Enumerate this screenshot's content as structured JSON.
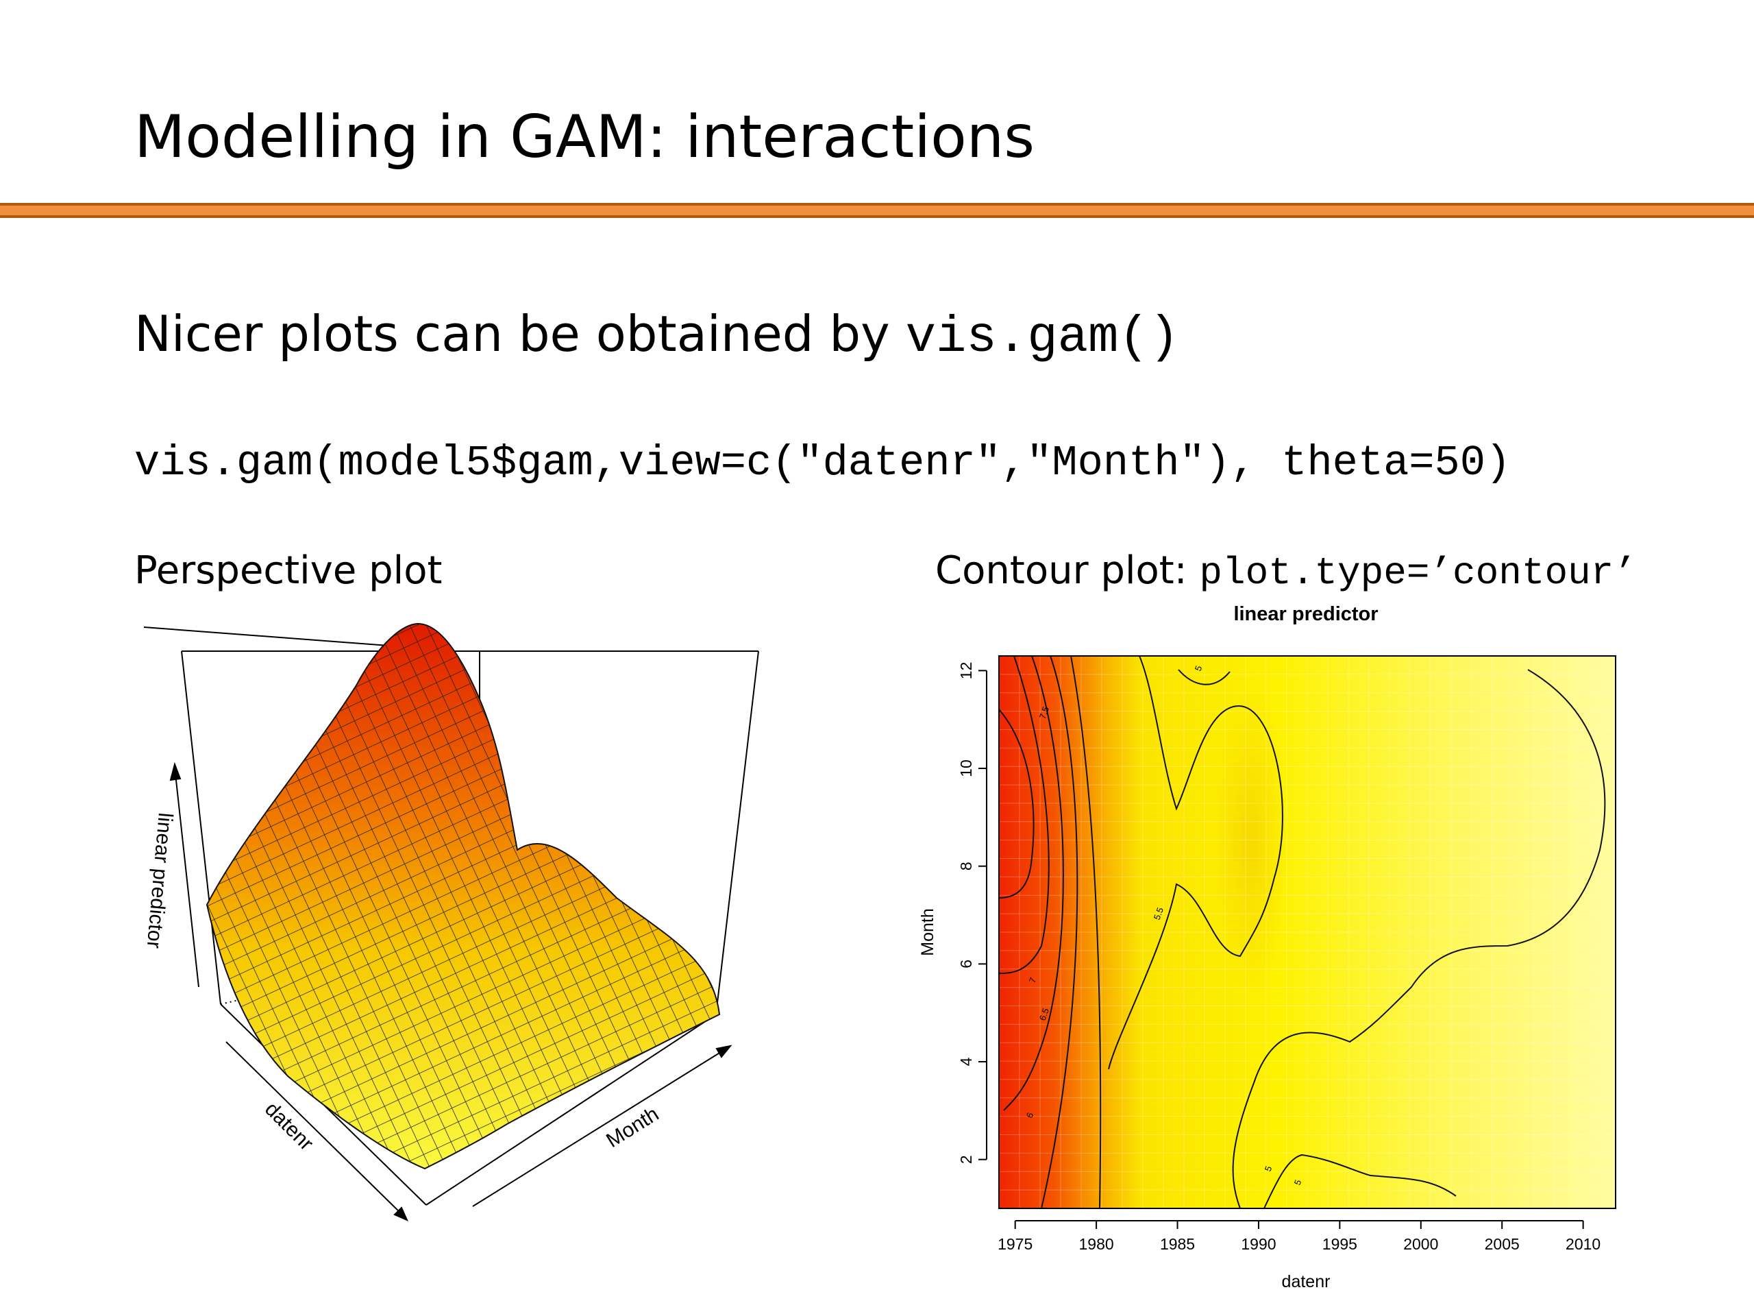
{
  "slide": {
    "title": "Modelling in GAM: interactions",
    "subtitle_text": "Nicer plots can be obtained by ",
    "subtitle_code": "vis.gam()",
    "code_line": "vis.gam(model5$gam,view=c(\"datenr\",\"Month\"), theta=50)",
    "perspective_label": "Perspective plot",
    "contour_label_text": "Contour plot: ",
    "contour_label_code": "plot.type=’contour’"
  },
  "colors": {
    "accent_rule": "#f0903a"
  },
  "perspective_plot": {
    "zlabel": "linear predictor",
    "xlabel": "datenr",
    "ylabel": "Month"
  },
  "chart_data": {
    "type": "heatmap",
    "title": "linear predictor",
    "xlabel": "datenr",
    "ylabel": "Month",
    "xlim": [
      1974,
      2012
    ],
    "ylim": [
      1,
      12.3
    ],
    "x_ticks": [
      "1975",
      "1980",
      "1985",
      "1990",
      "1995",
      "2000",
      "2005",
      "2010"
    ],
    "y_ticks": [
      "2",
      "4",
      "6",
      "8",
      "10",
      "12"
    ],
    "contour_labels": [
      "7.5",
      "7",
      "6.5",
      "6",
      "5.5",
      "5",
      "5",
      "5"
    ]
  }
}
